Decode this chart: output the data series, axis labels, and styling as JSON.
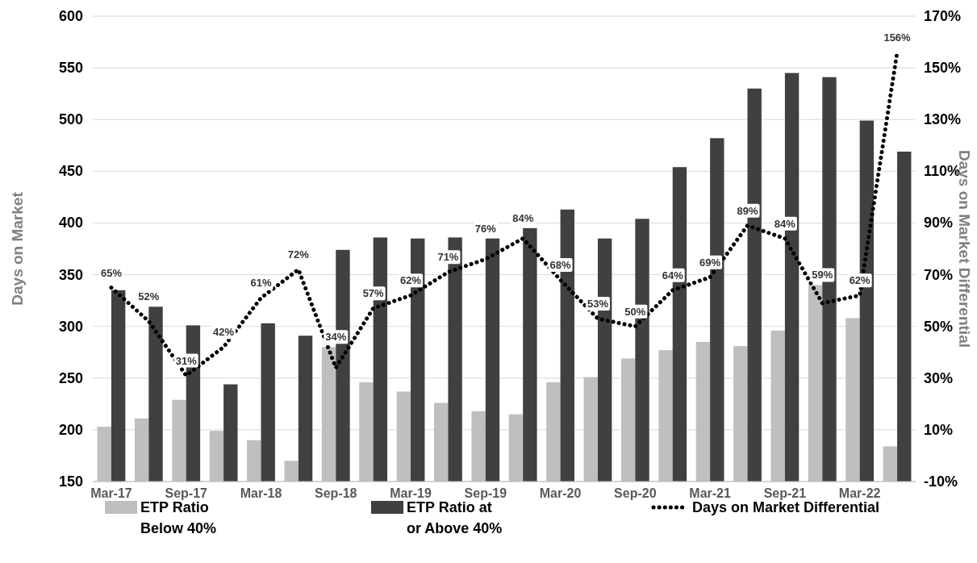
{
  "chart_data": {
    "type": "bar",
    "ylabel": "Days on Market",
    "y2label": "Days on Market Differential",
    "categories": [
      "Mar-17",
      null,
      "Sep-17",
      null,
      "Mar-18",
      null,
      "Sep-18",
      null,
      "Mar-19",
      null,
      "Sep-19",
      null,
      "Mar-20",
      null,
      "Sep-20",
      null,
      "Mar-21",
      null,
      "Sep-21",
      null,
      "Mar-22",
      null
    ],
    "series": [
      {
        "name": "ETP Ratio Below 40%",
        "color": "#bfbfbf",
        "values": [
          203,
          211,
          229,
          199,
          190,
          170,
          280,
          246,
          237,
          226,
          218,
          215,
          246,
          251,
          269,
          277,
          285,
          281,
          296,
          340,
          308,
          184
        ]
      },
      {
        "name": "ETP Ratio at or Above 40%",
        "color": "#404040",
        "values": [
          335,
          319,
          301,
          244,
          303,
          291,
          374,
          386,
          385,
          386,
          385,
          395,
          413,
          385,
          404,
          454,
          482,
          530,
          545,
          541,
          499,
          469
        ]
      },
      {
        "name": "Days on Market Differential",
        "type": "line",
        "axis": "y2",
        "color": "#000000",
        "line_style": "dotted",
        "marker": "none",
        "values": [
          65,
          52,
          31,
          42,
          61,
          72,
          34,
          57,
          62,
          71,
          76,
          84,
          68,
          53,
          50,
          64,
          69,
          89,
          84,
          59,
          62,
          156
        ],
        "value_labels": [
          "65%",
          "52%",
          "31%",
          "42%",
          "61%",
          "72%",
          "34%",
          "57%",
          "62%",
          "71%",
          "76%",
          "84%",
          "68%",
          "53%",
          "50%",
          "64%",
          "69%",
          "89%",
          "84%",
          "59%",
          "62%",
          "156%"
        ]
      }
    ],
    "ylim": [
      150,
      600
    ],
    "yticks": [
      150,
      200,
      250,
      300,
      350,
      400,
      450,
      500,
      550,
      600
    ],
    "y2lim": [
      -10,
      170
    ],
    "y2ticks": [
      {
        "value": -10,
        "label": "-10%"
      },
      {
        "value": 10,
        "label": "10%"
      },
      {
        "value": 30,
        "label": "30%"
      },
      {
        "value": 50,
        "label": "50%"
      },
      {
        "value": 70,
        "label": "70%"
      },
      {
        "value": 90,
        "label": "90%"
      },
      {
        "value": 110,
        "label": "110%"
      },
      {
        "value": 130,
        "label": "130%"
      },
      {
        "value": 150,
        "label": "150%"
      },
      {
        "value": 170,
        "label": "170%"
      }
    ],
    "grid": "y",
    "legend": "bottom"
  }
}
